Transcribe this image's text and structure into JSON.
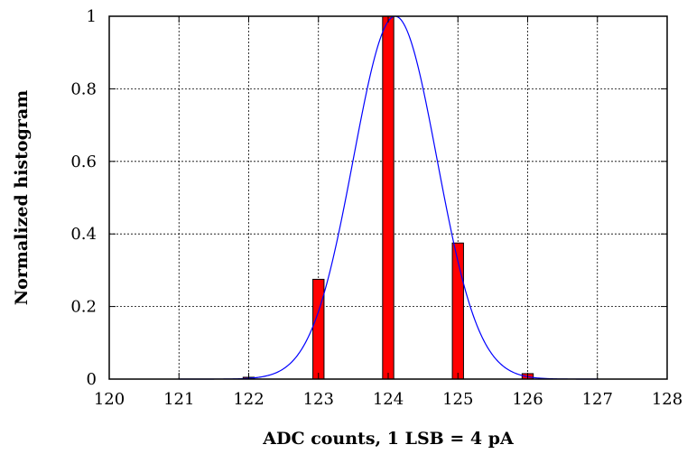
{
  "chart_data": {
    "type": "bar",
    "xlabel": "ADC counts, 1 LSB = 4 pA",
    "ylabel": "Normalized histogram",
    "xlim": [
      120,
      128
    ],
    "ylim": [
      0,
      1
    ],
    "x_ticks": [
      "120",
      "121",
      "122",
      "123",
      "124",
      "125",
      "126",
      "127",
      "128"
    ],
    "y_ticks": [
      "0",
      "0.2",
      "0.4",
      "0.6",
      "0.8",
      "1"
    ],
    "grid": true,
    "bars": {
      "x": [
        122,
        123,
        124,
        125,
        126
      ],
      "values": [
        0.005,
        0.275,
        1.0,
        0.375,
        0.015
      ],
      "color": "#ff0000",
      "edge_color": "#000000"
    },
    "fit_curve": {
      "type": "gaussian",
      "mean": 124.1,
      "sigma": 0.6,
      "amplitude": 1.0,
      "color": "#0000ff"
    }
  }
}
